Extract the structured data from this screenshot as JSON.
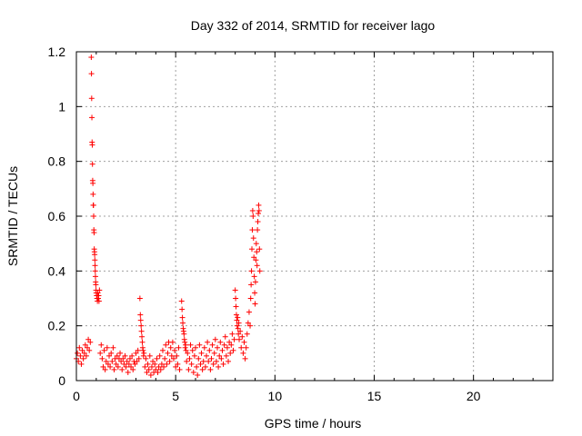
{
  "chart_data": {
    "type": "scatter",
    "title": "Day 332 of 2014, SRMTID for receiver lago",
    "xlabel": "GPS time / hours",
    "ylabel": "SRMTID / TECUs",
    "xlim": [
      0,
      24
    ],
    "ylim": [
      0,
      1.2
    ],
    "x_ticks": [
      0,
      5,
      10,
      15,
      20
    ],
    "x_tick_labels": [
      "0",
      "5",
      "10",
      "15",
      "20"
    ],
    "y_ticks": [
      0,
      0.2,
      0.4,
      0.6,
      0.8,
      1.0,
      1.2
    ],
    "y_tick_labels": [
      "0",
      "0.2",
      "0.4",
      "0.6",
      "0.8",
      "1",
      "1.2"
    ],
    "grid": true,
    "marker": "+",
    "colors": {
      "series": "#ff0000",
      "grid": "#a0a0a0",
      "frame": "#000000"
    },
    "series": [
      {
        "name": "SRMTID",
        "points": [
          [
            0.0,
            0.08
          ],
          [
            0.05,
            0.1
          ],
          [
            0.1,
            0.07
          ],
          [
            0.15,
            0.12
          ],
          [
            0.2,
            0.09
          ],
          [
            0.25,
            0.06
          ],
          [
            0.3,
            0.11
          ],
          [
            0.35,
            0.08
          ],
          [
            0.4,
            0.1
          ],
          [
            0.45,
            0.13
          ],
          [
            0.5,
            0.09
          ],
          [
            0.55,
            0.12
          ],
          [
            0.6,
            0.15
          ],
          [
            0.65,
            0.11
          ],
          [
            0.7,
            0.14
          ],
          [
            0.75,
            1.18
          ],
          [
            0.76,
            1.12
          ],
          [
            0.77,
            1.03
          ],
          [
            0.78,
            0.96
          ],
          [
            0.79,
            0.87
          ],
          [
            0.8,
            0.86
          ],
          [
            0.81,
            0.79
          ],
          [
            0.82,
            0.73
          ],
          [
            0.83,
            0.72
          ],
          [
            0.84,
            0.68
          ],
          [
            0.85,
            0.64
          ],
          [
            0.86,
            0.64
          ],
          [
            0.87,
            0.6
          ],
          [
            0.88,
            0.55
          ],
          [
            0.89,
            0.54
          ],
          [
            0.9,
            0.48
          ],
          [
            0.91,
            0.47
          ],
          [
            0.92,
            0.46
          ],
          [
            0.93,
            0.44
          ],
          [
            0.94,
            0.42
          ],
          [
            0.95,
            0.4
          ],
          [
            0.96,
            0.38
          ],
          [
            0.97,
            0.36
          ],
          [
            0.98,
            0.35
          ],
          [
            0.99,
            0.33
          ],
          [
            1.0,
            0.32
          ],
          [
            1.02,
            0.31
          ],
          [
            1.04,
            0.3
          ],
          [
            1.06,
            0.29
          ],
          [
            1.08,
            0.32
          ],
          [
            1.1,
            0.3
          ],
          [
            1.12,
            0.31
          ],
          [
            1.14,
            0.29
          ],
          [
            1.16,
            0.33
          ],
          [
            1.2,
            0.1
          ],
          [
            1.25,
            0.13
          ],
          [
            1.3,
            0.08
          ],
          [
            1.35,
            0.05
          ],
          [
            1.4,
            0.11
          ],
          [
            1.45,
            0.04
          ],
          [
            1.5,
            0.07
          ],
          [
            1.55,
            0.12
          ],
          [
            1.6,
            0.06
          ],
          [
            1.65,
            0.09
          ],
          [
            1.7,
            0.05
          ],
          [
            1.75,
            0.1
          ],
          [
            1.8,
            0.07
          ],
          [
            1.85,
            0.12
          ],
          [
            1.9,
            0.04
          ],
          [
            1.95,
            0.08
          ],
          [
            2.0,
            0.06
          ],
          [
            2.05,
            0.09
          ],
          [
            2.1,
            0.05
          ],
          [
            2.15,
            0.08
          ],
          [
            2.2,
            0.1
          ],
          [
            2.25,
            0.07
          ],
          [
            2.3,
            0.04
          ],
          [
            2.35,
            0.08
          ],
          [
            2.4,
            0.06
          ],
          [
            2.45,
            0.09
          ],
          [
            2.5,
            0.05
          ],
          [
            2.55,
            0.07
          ],
          [
            2.6,
            0.03
          ],
          [
            2.65,
            0.06
          ],
          [
            2.7,
            0.08
          ],
          [
            2.75,
            0.05
          ],
          [
            2.8,
            0.09
          ],
          [
            2.85,
            0.04
          ],
          [
            2.9,
            0.07
          ],
          [
            2.95,
            0.06
          ],
          [
            3.0,
            0.1
          ],
          [
            3.05,
            0.07
          ],
          [
            3.1,
            0.11
          ],
          [
            3.15,
            0.08
          ],
          [
            3.2,
            0.3
          ],
          [
            3.22,
            0.24
          ],
          [
            3.24,
            0.22
          ],
          [
            3.26,
            0.2
          ],
          [
            3.28,
            0.18
          ],
          [
            3.3,
            0.16
          ],
          [
            3.32,
            0.14
          ],
          [
            3.34,
            0.12
          ],
          [
            3.36,
            0.11
          ],
          [
            3.38,
            0.09
          ],
          [
            3.4,
            0.1
          ],
          [
            3.45,
            0.05
          ],
          [
            3.5,
            0.08
          ],
          [
            3.55,
            0.03
          ],
          [
            3.6,
            0.06
          ],
          [
            3.65,
            0.04
          ],
          [
            3.7,
            0.09
          ],
          [
            3.75,
            0.02
          ],
          [
            3.8,
            0.05
          ],
          [
            3.85,
            0.07
          ],
          [
            3.9,
            0.03
          ],
          [
            3.95,
            0.06
          ],
          [
            4.0,
            0.04
          ],
          [
            4.05,
            0.08
          ],
          [
            4.1,
            0.03
          ],
          [
            4.15,
            0.05
          ],
          [
            4.2,
            0.09
          ],
          [
            4.25,
            0.04
          ],
          [
            4.3,
            0.06
          ],
          [
            4.35,
            0.11
          ],
          [
            4.4,
            0.05
          ],
          [
            4.45,
            0.08
          ],
          [
            4.5,
            0.13
          ],
          [
            4.55,
            0.06
          ],
          [
            4.6,
            0.1
          ],
          [
            4.65,
            0.14
          ],
          [
            4.7,
            0.07
          ],
          [
            4.75,
            0.12
          ],
          [
            4.8,
            0.09
          ],
          [
            4.85,
            0.14
          ],
          [
            4.9,
            0.08
          ],
          [
            4.95,
            0.11
          ],
          [
            5.0,
            0.05
          ],
          [
            5.05,
            0.09
          ],
          [
            5.1,
            0.06
          ],
          [
            5.15,
            0.12
          ],
          [
            5.2,
            0.04
          ],
          [
            5.3,
            0.29
          ],
          [
            5.32,
            0.26
          ],
          [
            5.34,
            0.23
          ],
          [
            5.36,
            0.21
          ],
          [
            5.38,
            0.19
          ],
          [
            5.4,
            0.18
          ],
          [
            5.42,
            0.17
          ],
          [
            5.44,
            0.15
          ],
          [
            5.46,
            0.14
          ],
          [
            5.48,
            0.12
          ],
          [
            5.5,
            0.13
          ],
          [
            5.52,
            0.11
          ],
          [
            5.55,
            0.07
          ],
          [
            5.6,
            0.1
          ],
          [
            5.65,
            0.04
          ],
          [
            5.7,
            0.08
          ],
          [
            5.75,
            0.13
          ],
          [
            5.8,
            0.06
          ],
          [
            5.85,
            0.11
          ],
          [
            5.9,
            0.03
          ],
          [
            5.95,
            0.09
          ],
          [
            6.0,
            0.12
          ],
          [
            6.05,
            0.05
          ],
          [
            6.1,
            0.02
          ],
          [
            6.15,
            0.08
          ],
          [
            6.2,
            0.13
          ],
          [
            6.25,
            0.06
          ],
          [
            6.3,
            0.1
          ],
          [
            6.35,
            0.04
          ],
          [
            6.4,
            0.07
          ],
          [
            6.45,
            0.12
          ],
          [
            6.5,
            0.05
          ],
          [
            6.55,
            0.09
          ],
          [
            6.6,
            0.14
          ],
          [
            6.65,
            0.07
          ],
          [
            6.7,
            0.11
          ],
          [
            6.75,
            0.04
          ],
          [
            6.8,
            0.08
          ],
          [
            6.85,
            0.13
          ],
          [
            6.9,
            0.06
          ],
          [
            6.95,
            0.1
          ],
          [
            7.0,
            0.15
          ],
          [
            7.05,
            0.07
          ],
          [
            7.1,
            0.12
          ],
          [
            7.15,
            0.05
          ],
          [
            7.2,
            0.09
          ],
          [
            7.25,
            0.14
          ],
          [
            7.3,
            0.08
          ],
          [
            7.35,
            0.11
          ],
          [
            7.4,
            0.06
          ],
          [
            7.45,
            0.13
          ],
          [
            7.5,
            0.16
          ],
          [
            7.55,
            0.09
          ],
          [
            7.6,
            0.12
          ],
          [
            7.65,
            0.07
          ],
          [
            7.7,
            0.14
          ],
          [
            7.75,
            0.1
          ],
          [
            7.8,
            0.13
          ],
          [
            7.85,
            0.17
          ],
          [
            7.9,
            0.11
          ],
          [
            7.95,
            0.15
          ],
          [
            8.0,
            0.33
          ],
          [
            8.02,
            0.3
          ],
          [
            8.04,
            0.27
          ],
          [
            8.06,
            0.24
          ],
          [
            8.08,
            0.22
          ],
          [
            8.1,
            0.2
          ],
          [
            8.12,
            0.23
          ],
          [
            8.14,
            0.19
          ],
          [
            8.16,
            0.17
          ],
          [
            8.18,
            0.21
          ],
          [
            8.2,
            0.15
          ],
          [
            8.25,
            0.18
          ],
          [
            8.3,
            0.12
          ],
          [
            8.35,
            0.16
          ],
          [
            8.4,
            0.1
          ],
          [
            8.45,
            0.14
          ],
          [
            8.5,
            0.08
          ],
          [
            8.55,
            0.12
          ],
          [
            8.6,
            0.17
          ],
          [
            8.65,
            0.21
          ],
          [
            8.7,
            0.25
          ],
          [
            8.75,
            0.2
          ],
          [
            8.78,
            0.3
          ],
          [
            8.8,
            0.35
          ],
          [
            8.82,
            0.4
          ],
          [
            8.84,
            0.48
          ],
          [
            8.86,
            0.55
          ],
          [
            8.88,
            0.62
          ],
          [
            8.9,
            0.6
          ],
          [
            8.92,
            0.52
          ],
          [
            8.94,
            0.45
          ],
          [
            8.96,
            0.38
          ],
          [
            8.98,
            0.32
          ],
          [
            9.0,
            0.28
          ],
          [
            9.02,
            0.36
          ],
          [
            9.04,
            0.44
          ],
          [
            9.06,
            0.5
          ],
          [
            9.08,
            0.47
          ],
          [
            9.1,
            0.42
          ],
          [
            9.12,
            0.55
          ],
          [
            9.14,
            0.58
          ],
          [
            9.16,
            0.61
          ],
          [
            9.18,
            0.64
          ],
          [
            9.2,
            0.62
          ],
          [
            9.22,
            0.48
          ],
          [
            9.24,
            0.4
          ]
        ]
      }
    ]
  }
}
